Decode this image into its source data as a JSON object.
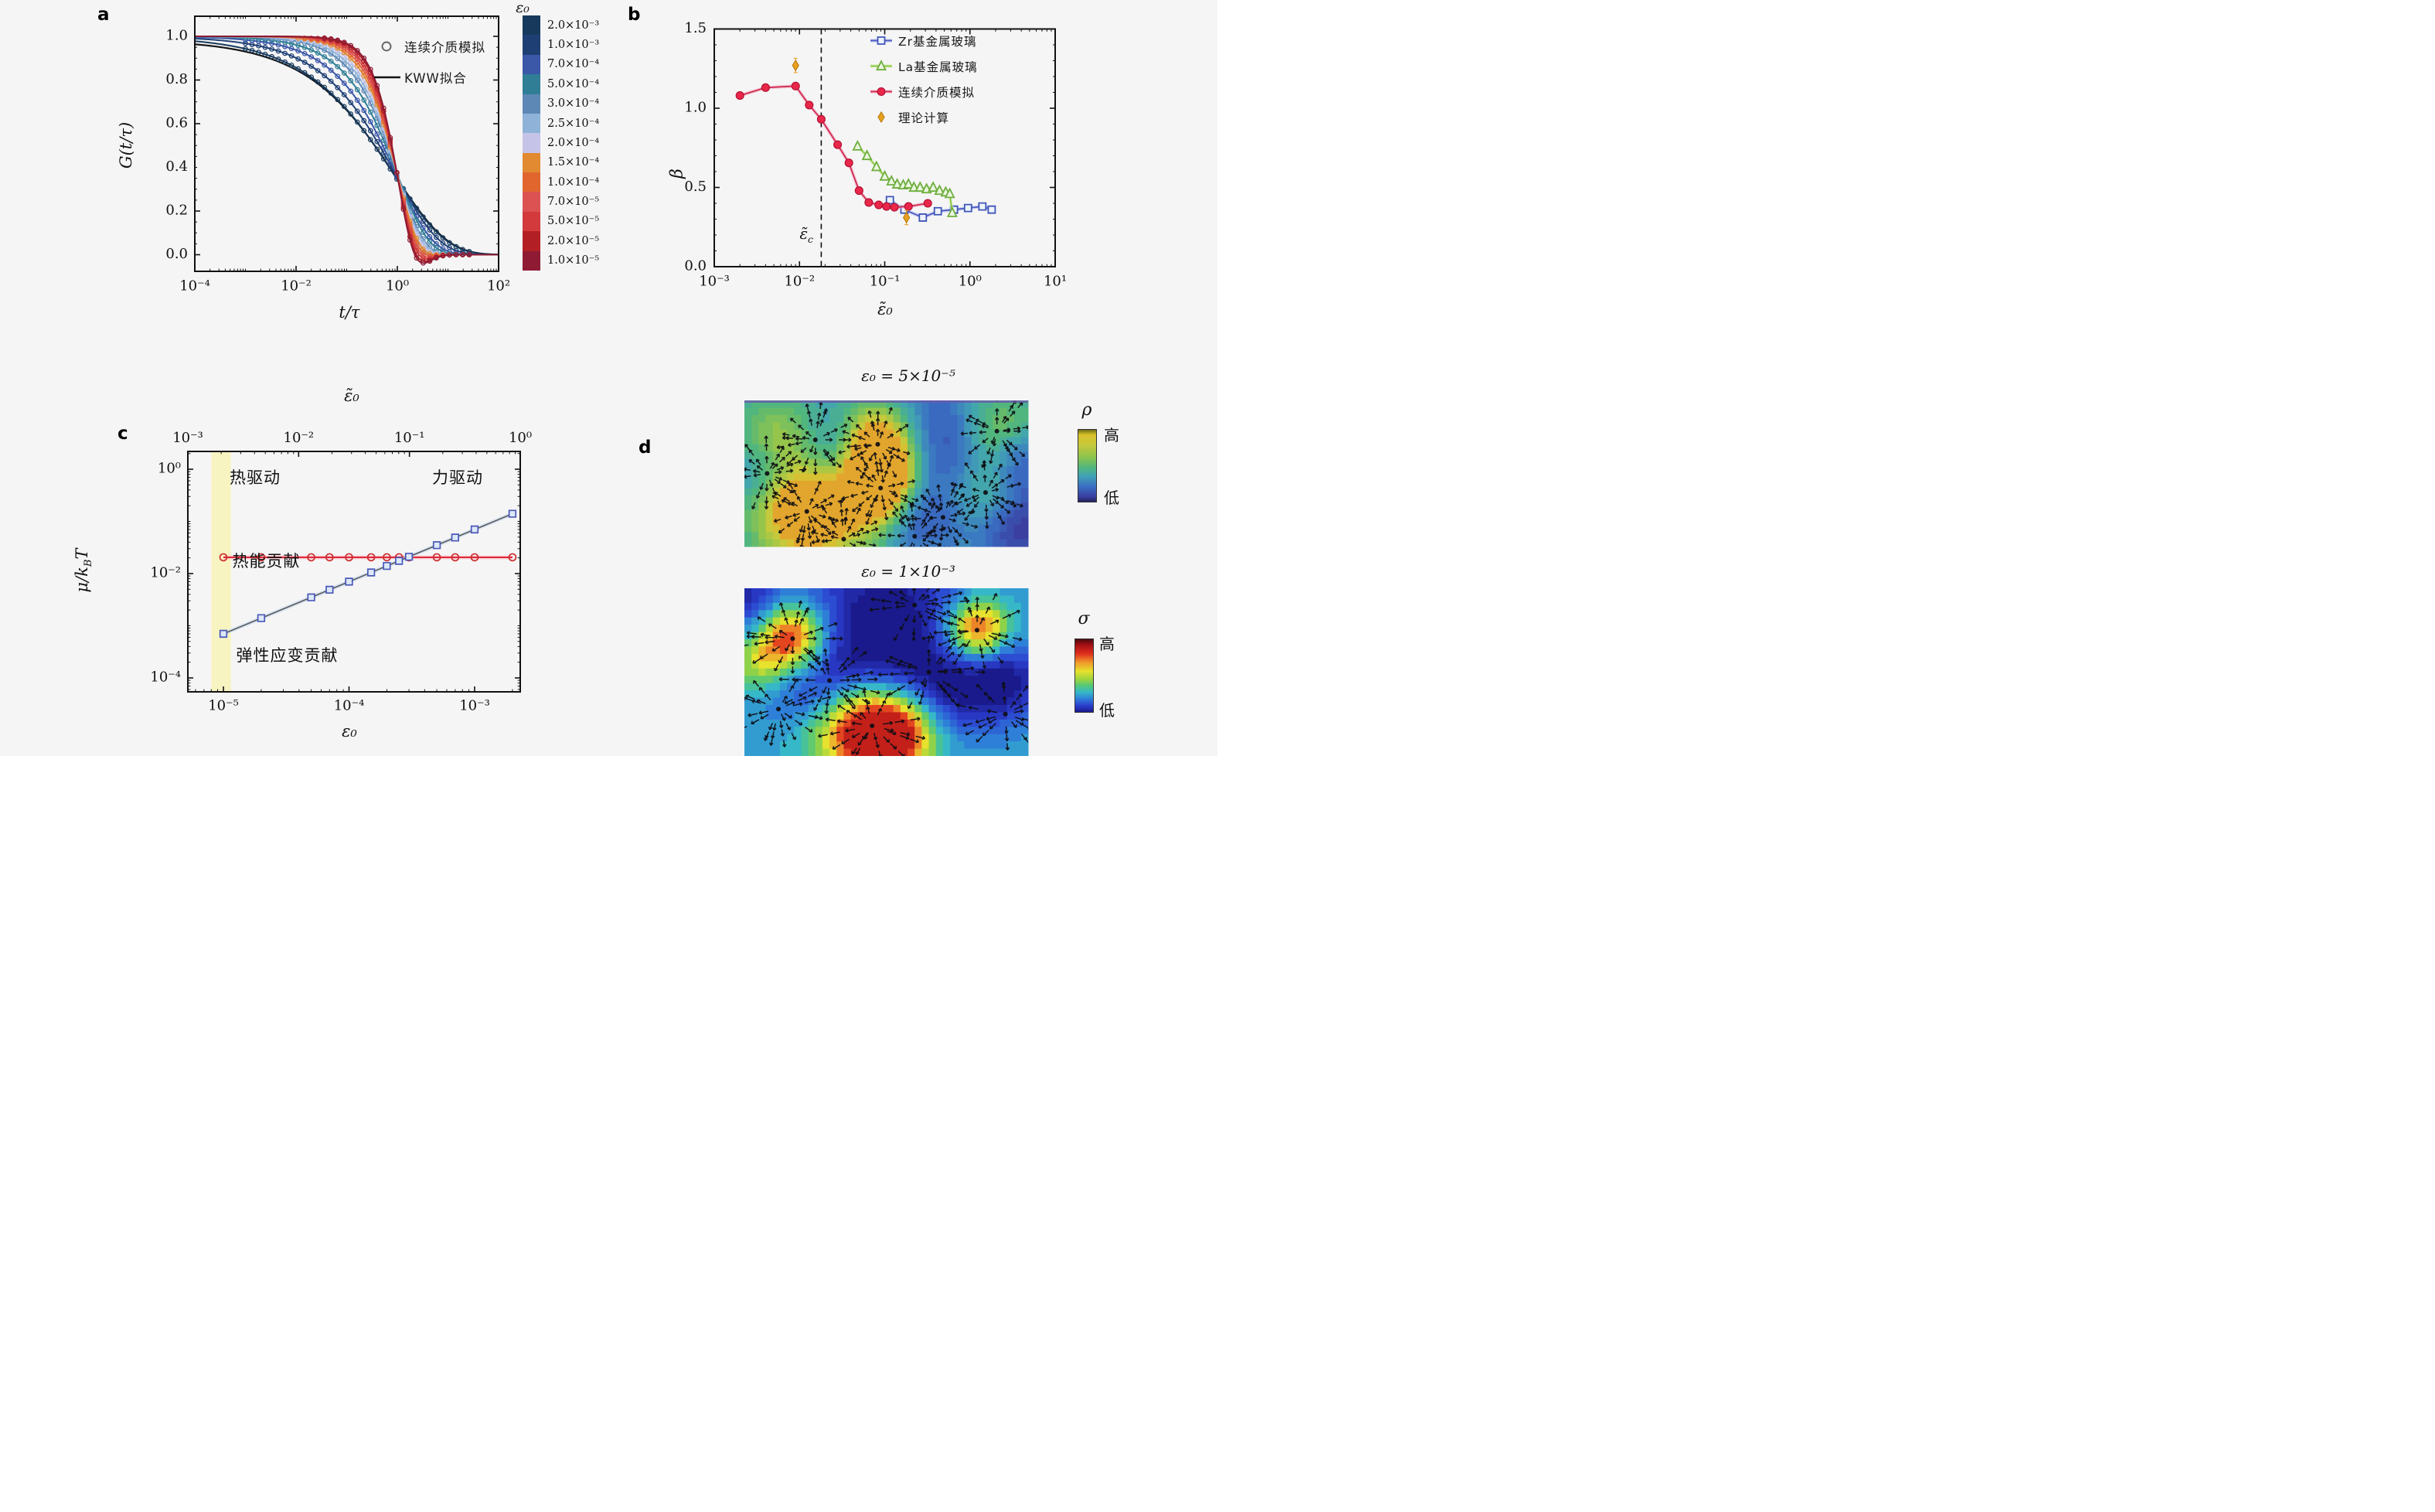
{
  "page": {
    "bg": "#f5f5f6"
  },
  "panel_a": {
    "label": "a",
    "xlabel": "t/τ",
    "ylabel": "G(t/τ)",
    "legend": [
      {
        "marker": "open-circle",
        "label": "连续介质模拟"
      },
      {
        "marker": "black-line",
        "label": "KWW拟合"
      }
    ],
    "colorbar": {
      "title": "ε₀",
      "entries": [
        {
          "label": "2.0×10⁻³",
          "color": "#17395c"
        },
        {
          "label": "1.0×10⁻³",
          "color": "#1e3f74"
        },
        {
          "label": "7.0×10⁻⁴",
          "color": "#3b57a8"
        },
        {
          "label": "5.0×10⁻⁴",
          "color": "#2f7e96"
        },
        {
          "label": "3.0×10⁻⁴",
          "color": "#5d88b5"
        },
        {
          "label": "2.5×10⁻⁴",
          "color": "#8fb3d8"
        },
        {
          "label": "2.0×10⁻⁴",
          "color": "#c5c3e8"
        },
        {
          "label": "1.5×10⁻⁴",
          "color": "#e28a31"
        },
        {
          "label": "1.0×10⁻⁴",
          "color": "#e0662e"
        },
        {
          "label": "7.0×10⁻⁵",
          "color": "#dc5252"
        },
        {
          "label": "5.0×10⁻⁵",
          "color": "#d23a3c"
        },
        {
          "label": "2.0×10⁻⁵",
          "color": "#b22025"
        },
        {
          "label": "1.0×10⁻⁵",
          "color": "#8e1b33"
        }
      ]
    },
    "chart_data": {
      "type": "line",
      "title": "",
      "xlabel": "t/τ",
      "ylabel": "G(t/τ)",
      "xscale": "log",
      "xlim": [
        0.0001,
        100
      ],
      "ylim": [
        -0.076,
        1.094
      ],
      "xticks": [
        {
          "v": 0.0001,
          "label": "10⁻⁴"
        },
        {
          "v": 0.01,
          "label": "10⁻²"
        },
        {
          "v": 1,
          "label": "10⁰"
        },
        {
          "v": 100,
          "label": "10²"
        }
      ],
      "yticks": [
        {
          "v": 0.0,
          "label": "0.0"
        },
        {
          "v": 0.2,
          "label": "0.2"
        },
        {
          "v": 0.4,
          "label": "0.4"
        },
        {
          "v": 0.6,
          "label": "0.6"
        },
        {
          "v": 0.8,
          "label": "0.8"
        },
        {
          "v": 1.0,
          "label": "1.0"
        }
      ],
      "model": "G(t/τ)=exp(-((t/τ)/τs)^β) with undershoot for small ε₀; KWW fits in gray/black",
      "series": [
        {
          "eps": "2.0×10⁻³",
          "color": "#17395c",
          "beta": 0.42,
          "tau": 0.85
        },
        {
          "eps": "1.0×10⁻³",
          "color": "#1e3f74",
          "beta": 0.5,
          "tau": 0.92
        },
        {
          "eps": "7.0×10⁻⁴",
          "color": "#3b57a8",
          "beta": 0.6,
          "tau": 0.95
        },
        {
          "eps": "5.0×10⁻⁴",
          "color": "#2f7e96",
          "beta": 0.7,
          "tau": 1.0
        },
        {
          "eps": "3.0×10⁻⁴",
          "color": "#5d88b5",
          "beta": 0.82,
          "tau": 1.0
        },
        {
          "eps": "2.5×10⁻⁴",
          "color": "#8fb3d8",
          "beta": 0.9,
          "tau": 1.0
        },
        {
          "eps": "2.0×10⁻⁴",
          "color": "#c5c3e8",
          "beta": 0.98,
          "tau": 1.0
        },
        {
          "eps": "1.5×10⁻⁴",
          "color": "#e28a31",
          "beta": 1.06,
          "tau": 1.0
        },
        {
          "eps": "1.0×10⁻⁴",
          "color": "#e0662e",
          "beta": 1.14,
          "tau": 1.0
        },
        {
          "eps": "7.0×10⁻⁵",
          "color": "#dc5252",
          "beta": 1.22,
          "tau": 1.0
        },
        {
          "eps": "5.0×10⁻⁵",
          "color": "#d23a3c",
          "beta": 1.3,
          "tau": 1.0
        },
        {
          "eps": "2.0×10⁻⁵",
          "color": "#b22025",
          "beta": 1.4,
          "tau": 1.0
        },
        {
          "eps": "1.0×10⁻⁵",
          "color": "#8e1b33",
          "beta": 1.48,
          "tau": 1.0
        }
      ],
      "kww_fit_color": "#151515",
      "kww_aux_color": "#9a9a9a"
    }
  },
  "panel_b": {
    "label": "b",
    "xlabel": "ε̃₀",
    "ylabel": "β",
    "critical": {
      "base": "ε̃",
      "sub": "c",
      "x": 0.018
    },
    "legend": [
      {
        "label": "Zr基金属玻璃"
      },
      {
        "label": "La基金属玻璃"
      },
      {
        "label": "连续介质模拟"
      },
      {
        "label": "理论计算"
      }
    ],
    "chart_data": {
      "type": "scatter",
      "xscale": "log",
      "xlim": [
        0.001,
        10
      ],
      "ylim": [
        0,
        1.5
      ],
      "xticks": [
        {
          "v": 0.001,
          "label": "10⁻³"
        },
        {
          "v": 0.01,
          "label": "10⁻²"
        },
        {
          "v": 0.1,
          "label": "10⁻¹"
        },
        {
          "v": 1,
          "label": "10⁰"
        },
        {
          "v": 10,
          "label": "10¹"
        }
      ],
      "yticks": [
        {
          "v": 0.0,
          "label": "0.0"
        },
        {
          "v": 0.5,
          "label": "0.5"
        },
        {
          "v": 1.0,
          "label": "1.0"
        },
        {
          "v": 1.5,
          "label": "1.5"
        }
      ],
      "critical_strain": 0.018,
      "series": [
        {
          "name": "Zr基金属玻璃",
          "marker": "square-open",
          "color": "#3f55b8",
          "line": "#4d58c0",
          "halo": "#b9c4ee",
          "err": 0.018,
          "points": [
            [
              0.115,
              0.42
            ],
            [
              0.17,
              0.36
            ],
            [
              0.28,
              0.31
            ],
            [
              0.42,
              0.35
            ],
            [
              0.65,
              0.36
            ],
            [
              0.95,
              0.37
            ],
            [
              1.4,
              0.38
            ],
            [
              1.8,
              0.36
            ]
          ]
        },
        {
          "name": "La基金属玻璃",
          "marker": "triangle-open",
          "color": "#6fae3e",
          "line": "#8cc63f",
          "halo": "#d2ecb4",
          "err": 0.018,
          "points": [
            [
              0.048,
              0.76
            ],
            [
              0.062,
              0.7
            ],
            [
              0.08,
              0.63
            ],
            [
              0.1,
              0.57
            ],
            [
              0.12,
              0.54
            ],
            [
              0.14,
              0.52
            ],
            [
              0.165,
              0.515
            ],
            [
              0.19,
              0.52
            ],
            [
              0.22,
              0.5
            ],
            [
              0.26,
              0.5
            ],
            [
              0.31,
              0.49
            ],
            [
              0.37,
              0.5
            ],
            [
              0.44,
              0.48
            ],
            [
              0.52,
              0.47
            ],
            [
              0.58,
              0.46
            ],
            [
              0.62,
              0.34
            ]
          ]
        },
        {
          "name": "连续介质模拟",
          "marker": "circle-filled",
          "color": "#e8274b",
          "line": "#d0294f",
          "halo": "#f2afc4",
          "err": 0,
          "points": [
            [
              0.002,
              1.08
            ],
            [
              0.004,
              1.13
            ],
            [
              0.009,
              1.14
            ],
            [
              0.013,
              1.02
            ],
            [
              0.018,
              0.93
            ],
            [
              0.028,
              0.77
            ],
            [
              0.038,
              0.655
            ],
            [
              0.05,
              0.48
            ],
            [
              0.065,
              0.405
            ],
            [
              0.085,
              0.39
            ],
            [
              0.105,
              0.38
            ],
            [
              0.13,
              0.375
            ],
            [
              0.19,
              0.38
            ],
            [
              0.32,
              0.4
            ]
          ]
        },
        {
          "name": "理论计算",
          "marker": "diamond-filled",
          "color": "#e8a020",
          "line": null,
          "halo": null,
          "err": 0.045,
          "points": [
            [
              0.009,
              1.27
            ],
            [
              0.18,
              0.31
            ]
          ]
        }
      ]
    }
  },
  "panel_c": {
    "label": "c",
    "top_axis_label": "ε̃₀",
    "xlabel": "ε₀",
    "ylabel": {
      "pre": "μ/k",
      "sub": "B",
      "post": "T"
    },
    "annotations": {
      "thermal_drive": "热驱动",
      "force_drive": "力驱动",
      "thermal_contrib": "热能贡献",
      "elastic_contrib": "弹性应变贡献"
    },
    "chart_data": {
      "type": "scatter",
      "xscale": "log",
      "yscale": "log",
      "xlim": [
        5.2e-06,
        0.00235
      ],
      "ylim": [
        5.4e-05,
        2.2
      ],
      "top_axis": {
        "label": "ε̃₀",
        "xlim": [
          0.001,
          1.0
        ],
        "ticks": [
          {
            "v": 0.001,
            "label": "10⁻³"
          },
          {
            "v": 0.01,
            "label": "10⁻²"
          },
          {
            "v": 0.1,
            "label": "10⁻¹"
          },
          {
            "v": 1,
            "label": "10⁰"
          }
        ]
      },
      "xticks": [
        {
          "v": 1e-05,
          "label": "10⁻⁵"
        },
        {
          "v": 0.0001,
          "label": "10⁻⁴"
        },
        {
          "v": 0.001,
          "label": "10⁻³"
        }
      ],
      "yticks": [
        {
          "v": 1,
          "label": "10⁰"
        },
        {
          "v": 0.01,
          "label": "10⁻²"
        },
        {
          "v": 0.0001,
          "label": "10⁻⁴"
        }
      ],
      "band": {
        "x0": 8e-06,
        "x1": 1.15e-05,
        "color": "#f8f4bc"
      },
      "series": [
        {
          "name": "热能贡献",
          "marker": "circle-open",
          "color": "#cc2f2f",
          "line": "#e02838",
          "halo": "#f6b6c0",
          "x": [
            1e-05,
            2e-05,
            5e-05,
            7e-05,
            0.0001,
            0.00015,
            0.0002,
            0.00025,
            0.0003,
            0.0005,
            0.0007,
            0.001,
            0.002
          ],
          "y": [
            0.0205,
            0.0205,
            0.0205,
            0.0205,
            0.0205,
            0.0205,
            0.0205,
            0.0205,
            0.0205,
            0.0205,
            0.0205,
            0.0205,
            0.0205
          ]
        },
        {
          "name": "弹性应变贡献",
          "marker": "square-open",
          "color": "#4a58b8",
          "line": "#5a5a5a",
          "halo": "#c3d9f0",
          "x": [
            1e-05,
            2e-05,
            5e-05,
            7e-05,
            0.0001,
            0.00015,
            0.0002,
            0.00025,
            0.0003,
            0.0005,
            0.0007,
            0.001,
            0.002
          ],
          "y": [
            0.0007,
            0.0014,
            0.0035,
            0.0049,
            0.007,
            0.0105,
            0.014,
            0.0175,
            0.021,
            0.035,
            0.049,
            0.07,
            0.14
          ]
        }
      ]
    }
  },
  "panel_d": {
    "label": "d",
    "maps": [
      {
        "title": "ε₀ = 5×10⁻⁵",
        "field": "ρ",
        "colorbar": {
          "symbol": "ρ",
          "high": "高",
          "low": "低",
          "gradient": [
            "#6e6e14 0%",
            "#d8c02c 7%",
            "#c9c93a 20%",
            "#8ec44e 38%",
            "#52b77a 52%",
            "#41a3b4 64%",
            "#3a6fc4 79%",
            "#3b3fa0 93%",
            "#23235e 100%"
          ]
        },
        "colormap": [
          [
            0,
            "#3b3fa0"
          ],
          [
            0.2,
            "#3a6fc4"
          ],
          [
            0.4,
            "#41a3b4"
          ],
          [
            0.55,
            "#52b77a"
          ],
          [
            0.7,
            "#8ec44e"
          ],
          [
            0.85,
            "#c9c93a"
          ],
          [
            0.93,
            "#ddbb2e"
          ],
          [
            1,
            "#e8872b"
          ]
        ],
        "base": 0.42,
        "blobs": [
          [
            0.47,
            0.28,
            0.09,
            0.75
          ],
          [
            0.48,
            0.52,
            0.08,
            0.8
          ],
          [
            0.44,
            0.7,
            0.09,
            0.5
          ],
          [
            0.22,
            0.76,
            0.12,
            0.85
          ],
          [
            0.12,
            0.25,
            0.1,
            0.3
          ],
          [
            0.88,
            0.22,
            0.1,
            0.35
          ],
          [
            0.85,
            0.63,
            0.09,
            0.3
          ],
          [
            0.7,
            0.15,
            0.12,
            -0.3
          ],
          [
            0.33,
            0.35,
            0.1,
            -0.25
          ],
          [
            0.62,
            0.82,
            0.1,
            -0.3
          ],
          [
            0.97,
            0.85,
            0.12,
            -0.45
          ],
          [
            0.75,
            0.45,
            0.1,
            -0.2
          ],
          [
            0.05,
            0.5,
            0.08,
            -0.2
          ],
          [
            0.97,
            0.4,
            0.08,
            -0.3
          ]
        ],
        "arrow_centers": [
          [
            0.25,
            0.27
          ],
          [
            0.47,
            0.3
          ],
          [
            0.48,
            0.6
          ],
          [
            0.22,
            0.76
          ],
          [
            0.89,
            0.21
          ],
          [
            0.85,
            0.63
          ],
          [
            0.6,
            0.93
          ],
          [
            0.08,
            0.5
          ],
          [
            0.7,
            0.8
          ],
          [
            0.35,
            0.95
          ]
        ],
        "top_strip": "#6a5aaa",
        "arrow_stretch": 1.0
      },
      {
        "title": "ε₀ = 1×10⁻³",
        "field": "σ",
        "colorbar": {
          "symbol": "σ",
          "high": "高",
          "low": "低",
          "gradient": [
            "#4a0a0e 0%",
            "#a50f15 8%",
            "#e0301e 20%",
            "#f0992a 32%",
            "#e6e22e 44%",
            "#9ed43e 55%",
            "#52c87a 64%",
            "#36b8c8 73%",
            "#2e7fd8 82%",
            "#2b3fd0 91%",
            "#1a1a8c 100%"
          ]
        },
        "colormap": [
          [
            0,
            "#1a1a8c"
          ],
          [
            0.15,
            "#2b3fd0"
          ],
          [
            0.3,
            "#2e7fd8"
          ],
          [
            0.42,
            "#36b8c8"
          ],
          [
            0.52,
            "#52c87a"
          ],
          [
            0.62,
            "#9ed43e"
          ],
          [
            0.72,
            "#e6e22e"
          ],
          [
            0.82,
            "#f0992a"
          ],
          [
            0.92,
            "#e0301e"
          ],
          [
            1,
            "#a50f15"
          ]
        ],
        "base": 0.38,
        "blobs": [
          [
            0.17,
            0.3,
            0.09,
            0.75
          ],
          [
            0.82,
            0.25,
            0.08,
            0.7
          ],
          [
            0.42,
            0.82,
            0.13,
            0.85
          ],
          [
            0.55,
            0.86,
            0.1,
            0.5
          ],
          [
            0.05,
            0.45,
            0.07,
            0.25
          ],
          [
            0.5,
            0.56,
            0.18,
            -0.35
          ],
          [
            0.5,
            0.03,
            0.25,
            -0.3
          ],
          [
            0.92,
            0.55,
            0.1,
            -0.35
          ],
          [
            0.25,
            0.55,
            0.12,
            -0.25
          ],
          [
            0.75,
            0.6,
            0.1,
            -0.2
          ],
          [
            0.0,
            0.05,
            0.1,
            -0.3
          ]
        ],
        "arrow_centers": [
          [
            0.17,
            0.3
          ],
          [
            0.82,
            0.25
          ],
          [
            0.45,
            0.82
          ],
          [
            0.12,
            0.72
          ],
          [
            0.65,
            0.5
          ],
          [
            0.92,
            0.75
          ],
          [
            0.3,
            0.55
          ],
          [
            0.6,
            0.1
          ]
        ],
        "top_strip": null,
        "arrow_stretch": 1.4
      }
    ]
  }
}
